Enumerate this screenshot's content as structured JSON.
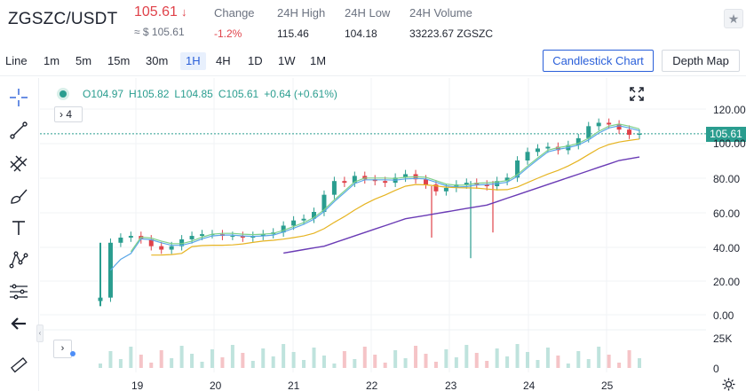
{
  "header": {
    "pair": "ZGSZC/USDT",
    "price": "105.61",
    "price_arrow": "↓",
    "price_usd": "≈ $ 105.61",
    "stats": [
      {
        "label": "Change",
        "value": "-1.2%"
      },
      {
        "label": "24H High",
        "value": "115.46"
      },
      {
        "label": "24H Low",
        "value": "104.18"
      },
      {
        "label": "24H Volume",
        "value": "33223.67 ZGSZC"
      }
    ],
    "favorite_icon": "star-icon"
  },
  "toolbar": {
    "timeframes": [
      "Line",
      "1m",
      "5m",
      "15m",
      "30m",
      "1H",
      "4H",
      "1D",
      "1W",
      "1M"
    ],
    "active_timeframe": "1H",
    "candlestick_label": "Candlestick Chart",
    "depth_label": "Depth Map"
  },
  "tools": [
    "crosshair-icon",
    "trend-line-icon",
    "multi-line-icon",
    "brush-icon",
    "text-icon",
    "pattern-icon",
    "fib-icon",
    "back-arrow-icon",
    "ruler-icon"
  ],
  "legend": {
    "o": "O104.97",
    "h": "H105.82",
    "l": "L104.85",
    "c": "C105.61",
    "chg": "+0.64 (+0.61%)",
    "collapse_label": "4"
  },
  "colors": {
    "up": "#2a9d8f",
    "down": "#e0424a",
    "accent": "#2a5fd9",
    "ma_yellow": "#e6b422",
    "ma_purple": "#6a3bb5",
    "ma_blue": "#5aa7e8",
    "ma_green": "#7fd18b"
  },
  "chart_data": {
    "type": "candlestick",
    "last_price": "105.61",
    "y_ticks": [
      "120.00",
      "100.00",
      "80.00",
      "60.00",
      "40.00",
      "20.00",
      "0.00"
    ],
    "volume_ticks": [
      "25K",
      "0"
    ],
    "x_ticks": [
      "19",
      "20",
      "21",
      "22",
      "23",
      "24",
      "25"
    ],
    "close_series": [
      10,
      42,
      45,
      46,
      44,
      40,
      38,
      40,
      44,
      46,
      47,
      47,
      46,
      46,
      45,
      46,
      47,
      48,
      52,
      55,
      56,
      60,
      70,
      78,
      77,
      81,
      79,
      78,
      77,
      80,
      82,
      79,
      76,
      72,
      74,
      76,
      77,
      76,
      75,
      78,
      80,
      90,
      95,
      97,
      98,
      96,
      99,
      103,
      110,
      112,
      111,
      108,
      105,
      105.61
    ],
    "ma_long": [
      null,
      null,
      null,
      null,
      null,
      null,
      null,
      null,
      null,
      null,
      null,
      null,
      null,
      null,
      null,
      null,
      null,
      null,
      44,
      45,
      46,
      47,
      48,
      50,
      52,
      54,
      56,
      58,
      60,
      62,
      64,
      65,
      66,
      67,
      68,
      69,
      70,
      71,
      72,
      74,
      76,
      78,
      80,
      82,
      84,
      86,
      88,
      90,
      92,
      94,
      96,
      98,
      99,
      100
    ]
  }
}
